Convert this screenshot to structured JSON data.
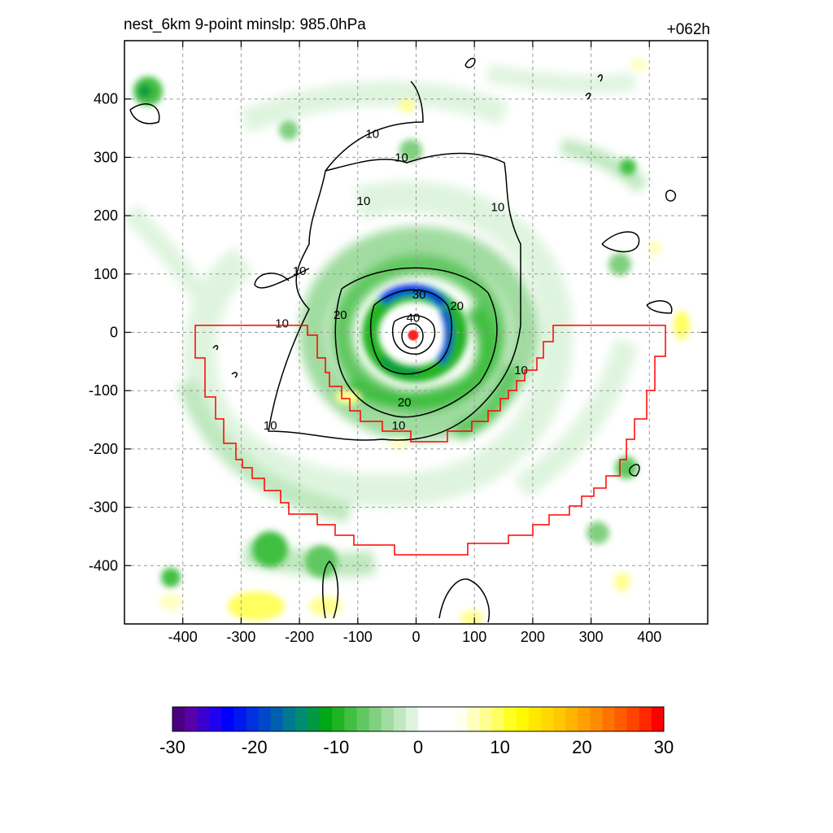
{
  "chart_data": {
    "type": "heatmap",
    "title_left": "nest_6km  9-point minslp: 985.0hPa",
    "title_right": "+062h",
    "xlim": [
      -500,
      500
    ],
    "ylim": [
      -500,
      500
    ],
    "x_ticks": [
      -400,
      -300,
      -200,
      -100,
      0,
      100,
      200,
      300,
      400
    ],
    "y_ticks": [
      400,
      300,
      200,
      100,
      0,
      -100,
      -200,
      -300,
      -400
    ],
    "x_tick_labels": [
      "-400",
      "-300",
      "-200",
      "-100",
      "0",
      "100",
      "200",
      "300",
      "400"
    ],
    "y_tick_labels": [
      "400",
      "300",
      "200",
      "100",
      "0",
      "-100",
      "-200",
      "-300",
      "-400"
    ],
    "grid": true,
    "center_marker": [
      -5,
      -5
    ],
    "contour_labels": [
      {
        "text": "10",
        "x": -75,
        "y": 340
      },
      {
        "text": "10",
        "x": -25,
        "y": 300
      },
      {
        "text": "10",
        "x": -90,
        "y": 225
      },
      {
        "text": "10",
        "x": 140,
        "y": 215
      },
      {
        "text": "10",
        "x": -200,
        "y": 105
      },
      {
        "text": "10",
        "x": -230,
        "y": 15
      },
      {
        "text": "20",
        "x": -130,
        "y": 30
      },
      {
        "text": "30",
        "x": 5,
        "y": 65
      },
      {
        "text": "20",
        "x": 70,
        "y": 45
      },
      {
        "text": "40",
        "x": -5,
        "y": 25
      },
      {
        "text": "10",
        "x": 180,
        "y": -65
      },
      {
        "text": "20",
        "x": -20,
        "y": -120
      },
      {
        "text": "10",
        "x": -30,
        "y": -160
      },
      {
        "text": "10",
        "x": -250,
        "y": -160
      }
    ],
    "colorbar": {
      "ticks": [
        -30,
        -20,
        -10,
        0,
        10,
        20,
        30
      ],
      "tick_labels": [
        "-30",
        "-20",
        "-10",
        "0",
        "10",
        "20",
        "30"
      ],
      "colors": [
        "#4b0082",
        "#5a00a8",
        "#3a00d0",
        "#2000f0",
        "#0000ff",
        "#0018f0",
        "#0030e0",
        "#0048c8",
        "#0060b0",
        "#007890",
        "#008c70",
        "#009840",
        "#00a818",
        "#20b420",
        "#40bf40",
        "#60c860",
        "#80d080",
        "#a0dca0",
        "#bfe8bf",
        "#dff4df",
        "#ffffff",
        "#ffffff",
        "#ffffff",
        "#fffff0",
        "#ffffc0",
        "#ffff90",
        "#ffff60",
        "#ffff20",
        "#fff800",
        "#ffe800",
        "#ffd800",
        "#ffc800",
        "#ffb400",
        "#ffa000",
        "#ff8c00",
        "#ff7400",
        "#ff5c00",
        "#ff4400",
        "#ff2800",
        "#ff0000"
      ]
    }
  }
}
